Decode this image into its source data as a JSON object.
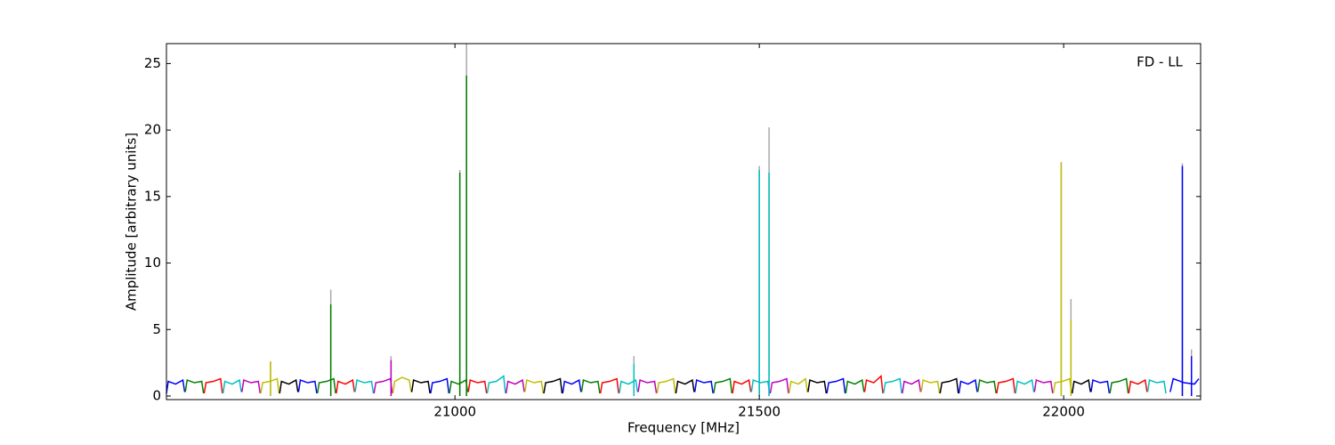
{
  "chart_data": {
    "type": "line",
    "annotation": "FD - LL",
    "xlabel": "Frequency [MHz]",
    "ylabel": "Amplitude [arbitrary units]",
    "xlim": [
      20526,
      22225
    ],
    "ylim": [
      -0.27,
      26.5
    ],
    "xticks": [
      21000,
      21500,
      22000
    ],
    "yticks": [
      0,
      5,
      10,
      15,
      20,
      25
    ],
    "max_color": "#aaaaaa",
    "series": [
      {
        "color": "#0000ff",
        "x": [
          20526,
          20529,
          20541,
          20553,
          20556,
          null,
          20743,
          20746,
          20758,
          20770,
          20773,
          null,
          20960,
          20963,
          20975,
          20987,
          20990,
          null,
          21177,
          21180,
          21192,
          21204,
          21207,
          null,
          21394,
          21397,
          21409,
          21421,
          21424,
          null,
          21611,
          21614,
          21626,
          21638,
          21641,
          null,
          21828,
          21831,
          21843,
          21855,
          21858,
          null,
          22045,
          22048,
          22060,
          22072,
          22075,
          null,
          22175,
          22180,
          22198,
          22215,
          22222
        ],
        "values": [
          0.2,
          1.1,
          0.9,
          1.2,
          0.3,
          null,
          0.3,
          1.2,
          1.0,
          1.1,
          0.2,
          null,
          0.2,
          1.0,
          1.1,
          1.3,
          0.2,
          null,
          0.2,
          1.1,
          0.9,
          1.2,
          0.3,
          null,
          0.3,
          1.2,
          1.0,
          1.1,
          0.2,
          null,
          0.2,
          1.0,
          1.1,
          1.3,
          0.2,
          null,
          0.2,
          1.1,
          0.9,
          1.2,
          0.3,
          null,
          0.3,
          1.2,
          1.0,
          1.1,
          0.2,
          null,
          0.3,
          1.3,
          1.0,
          0.9,
          1.3
        ]
      },
      {
        "color": "#008000",
        "x": [
          20557,
          20560,
          20572,
          20584,
          20587,
          null,
          20774,
          20777,
          20789,
          20801,
          20804,
          null,
          20991,
          20994,
          21006,
          21018,
          21021,
          null,
          21208,
          21211,
          21223,
          21235,
          21238,
          null,
          21425,
          21428,
          21440,
          21452,
          21455,
          null,
          21642,
          21645,
          21657,
          21669,
          21672,
          null,
          21859,
          21862,
          21874,
          21886,
          21889,
          null,
          22076,
          22079,
          22091,
          22103,
          22106
        ],
        "values": [
          0.3,
          1.2,
          1.0,
          1.1,
          0.2,
          null,
          0.2,
          1.0,
          1.1,
          1.3,
          0.2,
          null,
          0.2,
          1.1,
          0.9,
          1.2,
          0.3,
          null,
          0.3,
          1.2,
          1.0,
          1.1,
          0.2,
          null,
          0.2,
          1.0,
          1.1,
          1.3,
          0.2,
          null,
          0.2,
          1.1,
          0.9,
          1.2,
          0.3,
          null,
          0.3,
          1.2,
          1.0,
          1.1,
          0.2,
          null,
          0.2,
          1.0,
          1.1,
          1.3,
          0.2
        ]
      },
      {
        "color": "#ff0000",
        "x": [
          20588,
          20591,
          20603,
          20615,
          20618,
          null,
          20805,
          20808,
          20820,
          20832,
          20835,
          null,
          21022,
          21025,
          21037,
          21049,
          21052,
          null,
          21239,
          21242,
          21254,
          21266,
          21269,
          null,
          21456,
          21459,
          21471,
          21483,
          21486,
          null,
          21673,
          21676,
          21688,
          21700,
          21703,
          null,
          21890,
          21893,
          21905,
          21917,
          21920,
          null,
          22107,
          22110,
          22122,
          22134,
          22137
        ],
        "values": [
          0.2,
          1.0,
          1.1,
          1.3,
          0.2,
          null,
          0.2,
          1.1,
          0.9,
          1.2,
          0.3,
          null,
          0.3,
          1.2,
          1.0,
          1.1,
          0.2,
          null,
          0.2,
          1.0,
          1.1,
          1.3,
          0.2,
          null,
          0.2,
          1.1,
          0.9,
          1.2,
          0.3,
          null,
          0.3,
          1.2,
          1.0,
          1.5,
          0.2,
          null,
          0.2,
          1.0,
          1.1,
          1.3,
          0.2,
          null,
          0.2,
          1.1,
          0.9,
          1.2,
          0.3
        ]
      },
      {
        "color": "#00bfbf",
        "x": [
          20619,
          20622,
          20634,
          20646,
          20649,
          null,
          20836,
          20839,
          20851,
          20863,
          20866,
          null,
          21053,
          21056,
          21068,
          21080,
          21083,
          null,
          21270,
          21273,
          21285,
          21297,
          21300,
          null,
          21487,
          21490,
          21502,
          21514,
          21517,
          null,
          21704,
          21707,
          21719,
          21731,
          21734,
          null,
          21921,
          21924,
          21936,
          21948,
          21951,
          null,
          22138,
          22141,
          22153,
          22165,
          22168
        ],
        "values": [
          0.2,
          1.1,
          0.9,
          1.2,
          0.3,
          null,
          0.3,
          1.2,
          1.0,
          1.1,
          0.2,
          null,
          0.2,
          1.0,
          1.1,
          1.5,
          0.2,
          null,
          0.2,
          1.1,
          0.9,
          1.2,
          0.3,
          null,
          0.3,
          1.2,
          1.0,
          1.1,
          0.2,
          null,
          0.2,
          1.0,
          1.1,
          1.3,
          0.2,
          null,
          0.2,
          1.1,
          0.9,
          1.2,
          0.3,
          null,
          0.3,
          1.2,
          1.0,
          1.1,
          0.2
        ]
      },
      {
        "color": "#bf00bf",
        "x": [
          20650,
          20653,
          20665,
          20677,
          20680,
          null,
          20867,
          20870,
          20882,
          20894,
          20897,
          null,
          21084,
          21087,
          21099,
          21111,
          21114,
          null,
          21301,
          21304,
          21316,
          21328,
          21331,
          null,
          21518,
          21521,
          21533,
          21545,
          21548,
          null,
          21735,
          21738,
          21750,
          21762,
          21765,
          null,
          21952,
          21955,
          21967,
          21979,
          21982
        ],
        "values": [
          0.3,
          1.2,
          1.0,
          1.1,
          0.2,
          null,
          0.2,
          1.0,
          1.1,
          1.3,
          0.2,
          null,
          0.2,
          1.1,
          0.9,
          1.2,
          0.3,
          null,
          0.3,
          1.2,
          1.0,
          1.1,
          0.2,
          null,
          0.2,
          1.0,
          1.1,
          1.3,
          0.2,
          null,
          0.2,
          1.1,
          0.9,
          1.2,
          0.3,
          null,
          0.3,
          1.2,
          1.0,
          1.1,
          0.2
        ]
      },
      {
        "color": "#bfbf00",
        "x": [
          20681,
          20684,
          20696,
          20708,
          20711,
          null,
          20898,
          20901,
          20913,
          20925,
          20928,
          null,
          21115,
          21118,
          21130,
          21142,
          21145,
          null,
          21332,
          21335,
          21347,
          21359,
          21362,
          null,
          21549,
          21552,
          21564,
          21576,
          21579,
          null,
          21766,
          21769,
          21781,
          21793,
          21796,
          null,
          21983,
          21986,
          21998,
          22010,
          22013
        ],
        "values": [
          0.2,
          1.0,
          1.1,
          1.3,
          0.2,
          null,
          0.2,
          1.1,
          1.4,
          1.2,
          0.3,
          null,
          0.3,
          1.2,
          1.0,
          1.1,
          0.2,
          null,
          0.2,
          1.0,
          1.1,
          1.3,
          0.2,
          null,
          0.2,
          1.1,
          0.9,
          1.3,
          0.3,
          null,
          0.3,
          1.2,
          1.0,
          1.1,
          0.2,
          null,
          0.2,
          1.0,
          1.1,
          1.3,
          0.2
        ]
      },
      {
        "color": "#000000",
        "x": [
          20712,
          20715,
          20727,
          20739,
          20742,
          null,
          20929,
          20932,
          20944,
          20956,
          20959,
          null,
          21146,
          21149,
          21161,
          21173,
          21176,
          null,
          21363,
          21366,
          21378,
          21390,
          21393,
          null,
          21580,
          21583,
          21595,
          21607,
          21610,
          null,
          21797,
          21800,
          21812,
          21824,
          21827,
          null,
          22014,
          22017,
          22029,
          22041,
          22044
        ],
        "values": [
          0.2,
          1.1,
          0.9,
          1.2,
          0.3,
          null,
          0.3,
          1.2,
          1.0,
          1.1,
          0.2,
          null,
          0.2,
          1.0,
          1.1,
          1.3,
          0.2,
          null,
          0.2,
          1.1,
          0.9,
          1.2,
          0.3,
          null,
          0.3,
          1.2,
          1.0,
          1.1,
          0.2,
          null,
          0.2,
          1.0,
          1.1,
          1.3,
          0.2,
          null,
          0.2,
          1.1,
          0.9,
          1.2,
          0.3
        ]
      }
    ],
    "peaks": [
      {
        "x": 20697,
        "value": 2.6,
        "max": 2.6,
        "color": "#bfbf00"
      },
      {
        "x": 20796,
        "value": 6.9,
        "max": 8.0,
        "color": "#008000"
      },
      {
        "x": 20895,
        "value": 2.7,
        "max": 3.0,
        "color": "#bf00bf"
      },
      {
        "x": 21008,
        "value": 16.8,
        "max": 17.0,
        "color": "#008000"
      },
      {
        "x": 21019,
        "value": 24.1,
        "max": 26.5,
        "color": "#008000"
      },
      {
        "x": 21294,
        "value": 2.4,
        "max": 3.0,
        "color": "#00bfbf"
      },
      {
        "x": 21500,
        "value": 17.0,
        "max": 17.3,
        "color": "#00bfbf"
      },
      {
        "x": 21516,
        "value": 16.8,
        "max": 20.2,
        "color": "#00bfbf"
      },
      {
        "x": 21996,
        "value": 17.5,
        "max": 17.6,
        "color": "#bfbf00"
      },
      {
        "x": 22012,
        "value": 5.7,
        "max": 7.3,
        "color": "#bfbf00"
      },
      {
        "x": 22195,
        "value": 17.3,
        "max": 17.5,
        "color": "#0000ff"
      },
      {
        "x": 22210,
        "value": 3.0,
        "max": 3.5,
        "color": "#0000ff"
      }
    ]
  }
}
